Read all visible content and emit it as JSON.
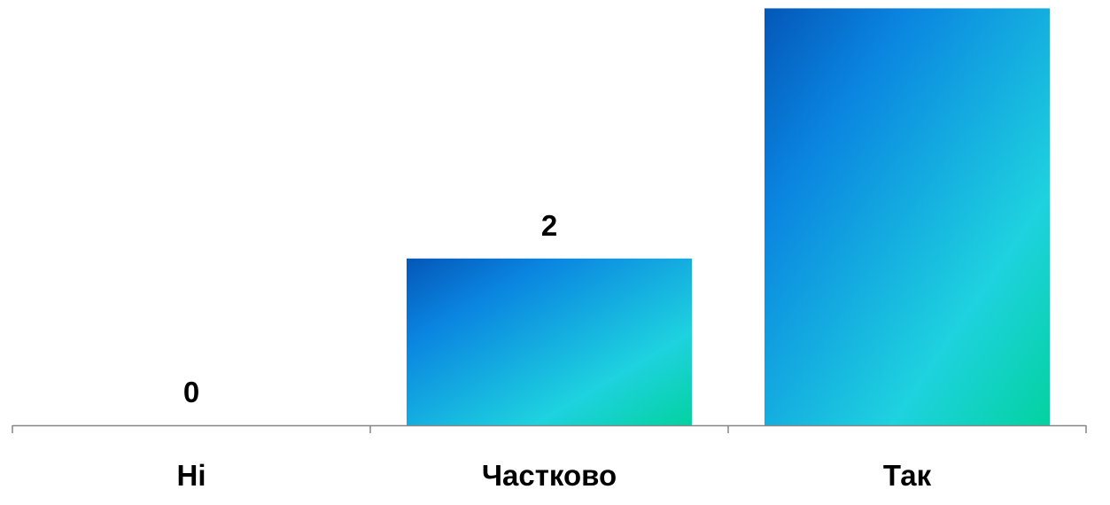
{
  "chart_data": {
    "type": "bar",
    "categories": [
      "Ні",
      "Частково",
      "Так"
    ],
    "values": [
      0,
      2,
      5
    ],
    "data_labels": [
      "0",
      "2",
      ""
    ],
    "ylim": [
      0,
      5.1
    ],
    "grid": false,
    "legend": "none",
    "bar_gradient": {
      "from": "#0457B8",
      "mid1": "#0A84E0",
      "mid2": "#1ED2DF",
      "to": "#03D2A0"
    },
    "axis_color": "#868686"
  }
}
